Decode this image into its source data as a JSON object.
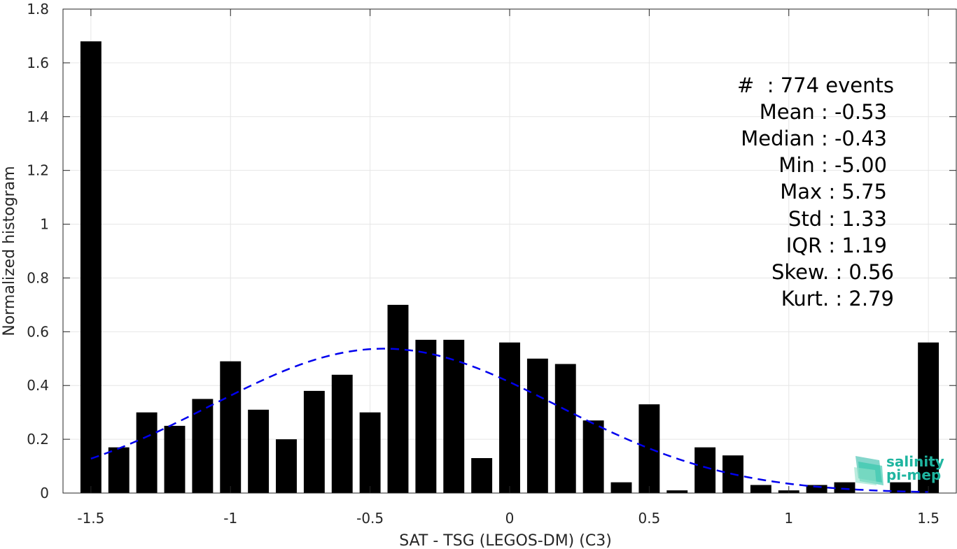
{
  "chart_data": {
    "type": "bar",
    "xlabel": "SAT - TSG (LEGOS-DM) (C3)",
    "ylabel": "Normalized histogram",
    "xlim": [
      -1.6,
      1.6
    ],
    "ylim": [
      0,
      1.8
    ],
    "xticks": [
      -1.5,
      -1,
      -0.5,
      0,
      0.5,
      1,
      1.5
    ],
    "xtick_labels": [
      "-1.5",
      "-1",
      "-0.5",
      "0",
      "0.5",
      "1",
      "1.5"
    ],
    "yticks": [
      0,
      0.2,
      0.4,
      0.6,
      0.8,
      1,
      1.2,
      1.4,
      1.6,
      1.8
    ],
    "ytick_labels": [
      "0",
      "0.2",
      "0.4",
      "0.6",
      "0.8",
      "1",
      "1.2",
      "1.4",
      "1.6",
      "1.8"
    ],
    "grid": true,
    "bar_width": 0.075,
    "colors": {
      "bars": "#000000",
      "fit": "#0000ee",
      "grid": "#e6e6e6",
      "axis": "#262626"
    },
    "bars": {
      "x": [
        -1.5,
        -1.4,
        -1.3,
        -1.2,
        -1.1,
        -1.0,
        -0.9,
        -0.8,
        -0.7,
        -0.6,
        -0.5,
        -0.4,
        -0.3,
        -0.2,
        -0.1,
        0.0,
        0.1,
        0.2,
        0.3,
        0.4,
        0.5,
        0.6,
        0.7,
        0.8,
        0.9,
        1.0,
        1.1,
        1.2,
        1.3,
        1.4,
        1.5
      ],
      "values": [
        1.68,
        0.17,
        0.3,
        0.25,
        0.35,
        0.49,
        0.31,
        0.2,
        0.38,
        0.44,
        0.3,
        0.7,
        0.57,
        0.57,
        0.13,
        0.56,
        0.5,
        0.48,
        0.27,
        0.04,
        0.33,
        0.01,
        0.17,
        0.14,
        0.03,
        0.01,
        0.03,
        0.04,
        0.0,
        0.04,
        0.56
      ]
    },
    "fit": {
      "style": "dashed",
      "mean": -0.45,
      "std": 0.62,
      "peak": 0.537,
      "x_range": [
        -1.5,
        1.5
      ]
    }
  },
  "stats": {
    "events": "#  : 774 events",
    "mean": "Mean : -0.53",
    "median": "Median : -0.43",
    "min": "Min : -5.00",
    "max": "Max : 5.75",
    "std": "Std : 1.33",
    "iqr": "IQR : 1.19",
    "skew": "Skew. : 0.56",
    "kurt": "Kurt. : 2.79"
  },
  "logo": {
    "line1": "salinity",
    "line2": "pi-mep",
    "icon": "salinity-pimep-logo-icon"
  }
}
